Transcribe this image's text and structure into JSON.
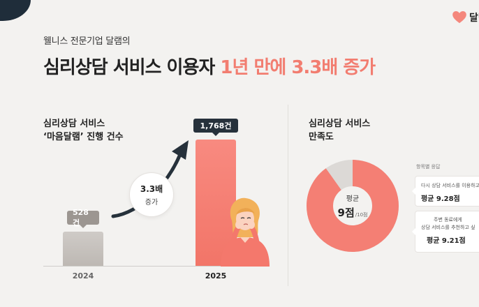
{
  "header": {
    "subtitle": "웰니스 전문기업 달램의",
    "title_main": "심리상담 서비스 이용자",
    "title_highlight": "1년 만에 3.3배 증가",
    "brand_text": "달램",
    "brand_icon": "heart-icon",
    "accent_color": "#f27d70"
  },
  "left_panel": {
    "heading_line1": "심리상담 서비스",
    "heading_line2": "‘마음달램’ 진행 건수",
    "growth": {
      "value": "3.3배",
      "label": "증가"
    }
  },
  "chart_data": {
    "type": "bar",
    "categories": [
      "2024",
      "2025"
    ],
    "values": [
      528,
      1768
    ],
    "value_labels": [
      "528건",
      "1,768건"
    ],
    "colors": [
      "#c7c2bd",
      "#f47f74"
    ]
  },
  "right_panel": {
    "heading_line1": "심리상담 서비스",
    "heading_line2": "만족도",
    "donut": {
      "label": "평균",
      "score": "9점",
      "max": "/10점",
      "fraction": 0.9,
      "fill_color": "#f47f74",
      "track_color": "#dcd9d6"
    },
    "responses_label": "항목별 응답",
    "items": [
      {
        "question": "다시 상담 서비스를 이용하고",
        "average": "평균 9.28점"
      },
      {
        "question_line1": "주변 동료에게",
        "question_line2": "상담 서비스를 추천하고 싶",
        "average": "평균 9.21점"
      }
    ]
  }
}
